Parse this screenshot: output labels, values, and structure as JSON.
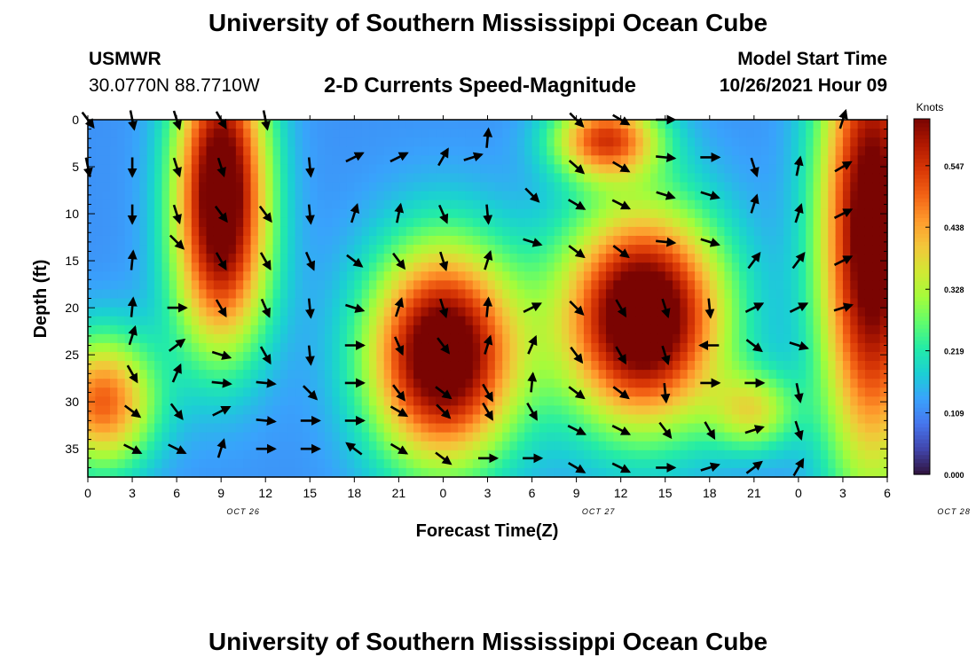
{
  "header": {
    "title": "University of Southern Mississippi Ocean Cube",
    "station": "USMWR",
    "coordinates": "30.0770N  88.7710W",
    "subtitle": "2-D Currents Speed-Magnitude",
    "model_start_label": "Model Start Time",
    "model_start_value": "10/26/2021 Hour 09"
  },
  "footer": {
    "title": "University of Southern Mississippi Ocean Cube"
  },
  "chart_data": {
    "type": "heatmap",
    "xlabel": "Forecast Time(Z)",
    "ylabel": "Depth (ft)",
    "x_tick_labels": [
      "0",
      "3",
      "6",
      "9",
      "12",
      "15",
      "18",
      "21",
      "0",
      "3",
      "6",
      "9",
      "12",
      "15",
      "18",
      "21",
      "0",
      "3",
      "6"
    ],
    "date_labels": [
      {
        "label": "OCT 26",
        "hours": 10.5
      },
      {
        "label": "OCT 27",
        "hours": 34.5
      },
      {
        "label": "OCT 28",
        "hours": 58.5
      }
    ],
    "xlim_hours": [
      0,
      54
    ],
    "ylim": [
      0,
      38
    ],
    "y_ticks": [
      0,
      5,
      10,
      15,
      20,
      25,
      30,
      35
    ],
    "y_inverted": true,
    "colorbar": {
      "unit": "Knots",
      "min": 0.0,
      "max": 0.63,
      "tick_labels": [
        "0.547",
        "0.438",
        "0.328",
        "0.219",
        "0.109",
        "0.000"
      ],
      "tick_values": [
        0.547,
        0.438,
        0.328,
        0.219,
        0.109,
        0.0
      ],
      "colormap": [
        "#30123b",
        "#4145ab",
        "#4675ed",
        "#39a2fc",
        "#1bcfd4",
        "#24eca6",
        "#61fc6c",
        "#a4fc3b",
        "#d1e834",
        "#f3c63a",
        "#fe9b2d",
        "#f36315",
        "#d93806",
        "#b11901",
        "#7a0402"
      ]
    },
    "speed_blobs": [
      {
        "t": 9,
        "d": 6,
        "st": 2.2,
        "sd": 10,
        "amp": 0.55
      },
      {
        "t": 9,
        "d": 18,
        "st": 2.5,
        "sd": 7,
        "amp": 0.15
      },
      {
        "t": 1,
        "d": 30,
        "st": 2.5,
        "sd": 5,
        "amp": 0.38
      },
      {
        "t": 24,
        "d": 25,
        "st": 3.5,
        "sd": 8,
        "amp": 0.6
      },
      {
        "t": 37.5,
        "d": 21,
        "st": 3.8,
        "sd": 8,
        "amp": 0.62
      },
      {
        "t": 35,
        "d": 2,
        "st": 2.5,
        "sd": 3,
        "amp": 0.4
      },
      {
        "t": 53,
        "d": 12,
        "st": 2.5,
        "sd": 18,
        "amp": 0.58
      },
      {
        "t": 45,
        "d": 31,
        "st": 2,
        "sd": 3,
        "amp": 0.22
      }
    ],
    "base_speed": 0.12,
    "vectors": [
      {
        "t": 0,
        "d": 0,
        "u": 0.6,
        "v": -0.8
      },
      {
        "t": 3,
        "d": 0,
        "u": 0.2,
        "v": -1
      },
      {
        "t": 6,
        "d": 0,
        "u": 0.3,
        "v": -0.95
      },
      {
        "t": 9,
        "d": 0,
        "u": 0.5,
        "v": -0.87
      },
      {
        "t": 12,
        "d": 0,
        "u": 0.2,
        "v": -1
      },
      {
        "t": 33,
        "d": 0,
        "u": 0.7,
        "v": -0.7
      },
      {
        "t": 36,
        "d": 0,
        "u": 0.85,
        "v": -0.5
      },
      {
        "t": 39,
        "d": 0,
        "u": 1,
        "v": 0
      },
      {
        "t": 51,
        "d": 0,
        "u": 0.3,
        "v": 0.95
      },
      {
        "t": 27,
        "d": 2,
        "u": 0.1,
        "v": 1
      },
      {
        "t": 0,
        "d": 5,
        "u": 0.2,
        "v": -0.98
      },
      {
        "t": 3,
        "d": 5,
        "u": 0,
        "v": -1
      },
      {
        "t": 6,
        "d": 5,
        "u": 0.3,
        "v": -0.95
      },
      {
        "t": 9,
        "d": 5,
        "u": 0.3,
        "v": -0.95
      },
      {
        "t": 15,
        "d": 5,
        "u": 0.1,
        "v": -1
      },
      {
        "t": 18,
        "d": 4,
        "u": 0.9,
        "v": 0.45
      },
      {
        "t": 21,
        "d": 4,
        "u": 0.9,
        "v": 0.45
      },
      {
        "t": 24,
        "d": 4,
        "u": 0.5,
        "v": 0.87
      },
      {
        "t": 26,
        "d": 4,
        "u": 0.95,
        "v": 0.3
      },
      {
        "t": 33,
        "d": 5,
        "u": 0.75,
        "v": -0.66
      },
      {
        "t": 36,
        "d": 5,
        "u": 0.85,
        "v": -0.5
      },
      {
        "t": 39,
        "d": 4,
        "u": 1,
        "v": -0.1
      },
      {
        "t": 42,
        "d": 4,
        "u": 1,
        "v": 0
      },
      {
        "t": 45,
        "d": 5,
        "u": 0.3,
        "v": -0.95
      },
      {
        "t": 48,
        "d": 5,
        "u": 0.2,
        "v": 0.98
      },
      {
        "t": 51,
        "d": 5,
        "u": 0.85,
        "v": 0.5
      },
      {
        "t": 3,
        "d": 10,
        "u": 0,
        "v": -1
      },
      {
        "t": 6,
        "d": 10,
        "u": 0.3,
        "v": -0.95
      },
      {
        "t": 9,
        "d": 10,
        "u": 0.6,
        "v": -0.8
      },
      {
        "t": 12,
        "d": 10,
        "u": 0.6,
        "v": -0.8
      },
      {
        "t": 15,
        "d": 10,
        "u": 0.1,
        "v": -1
      },
      {
        "t": 18,
        "d": 10,
        "u": 0.3,
        "v": 0.95
      },
      {
        "t": 21,
        "d": 10,
        "u": 0.2,
        "v": 0.98
      },
      {
        "t": 24,
        "d": 10,
        "u": 0.4,
        "v": -0.92
      },
      {
        "t": 27,
        "d": 10,
        "u": 0.1,
        "v": -1
      },
      {
        "t": 30,
        "d": 8,
        "u": 0.7,
        "v": -0.7
      },
      {
        "t": 33,
        "d": 9,
        "u": 0.85,
        "v": -0.5
      },
      {
        "t": 36,
        "d": 9,
        "u": 0.9,
        "v": -0.45
      },
      {
        "t": 39,
        "d": 8,
        "u": 0.95,
        "v": -0.3
      },
      {
        "t": 42,
        "d": 8,
        "u": 0.95,
        "v": -0.3
      },
      {
        "t": 45,
        "d": 9,
        "u": 0.3,
        "v": 0.95
      },
      {
        "t": 48,
        "d": 10,
        "u": 0.3,
        "v": 0.95
      },
      {
        "t": 51,
        "d": 10,
        "u": 0.9,
        "v": 0.45
      },
      {
        "t": 3,
        "d": 15,
        "u": 0.1,
        "v": 1
      },
      {
        "t": 6,
        "d": 13,
        "u": 0.7,
        "v": -0.7
      },
      {
        "t": 9,
        "d": 15,
        "u": 0.5,
        "v": -0.87
      },
      {
        "t": 12,
        "d": 15,
        "u": 0.5,
        "v": -0.87
      },
      {
        "t": 15,
        "d": 15,
        "u": 0.4,
        "v": -0.92
      },
      {
        "t": 18,
        "d": 15,
        "u": 0.8,
        "v": -0.6
      },
      {
        "t": 21,
        "d": 15,
        "u": 0.6,
        "v": -0.8
      },
      {
        "t": 24,
        "d": 15,
        "u": 0.3,
        "v": -0.95
      },
      {
        "t": 27,
        "d": 15,
        "u": 0.3,
        "v": 0.95
      },
      {
        "t": 30,
        "d": 13,
        "u": 0.95,
        "v": -0.3
      },
      {
        "t": 33,
        "d": 14,
        "u": 0.8,
        "v": -0.6
      },
      {
        "t": 36,
        "d": 14,
        "u": 0.8,
        "v": -0.6
      },
      {
        "t": 39,
        "d": 13,
        "u": 1,
        "v": -0.1
      },
      {
        "t": 42,
        "d": 13,
        "u": 0.95,
        "v": -0.3
      },
      {
        "t": 45,
        "d": 15,
        "u": 0.6,
        "v": 0.8
      },
      {
        "t": 48,
        "d": 15,
        "u": 0.6,
        "v": 0.8
      },
      {
        "t": 51,
        "d": 15,
        "u": 0.9,
        "v": 0.45
      },
      {
        "t": 3,
        "d": 20,
        "u": 0.1,
        "v": 1
      },
      {
        "t": 6,
        "d": 20,
        "u": 1,
        "v": 0
      },
      {
        "t": 9,
        "d": 20,
        "u": 0.5,
        "v": -0.87
      },
      {
        "t": 12,
        "d": 20,
        "u": 0.4,
        "v": -0.92
      },
      {
        "t": 15,
        "d": 20,
        "u": 0.1,
        "v": -1
      },
      {
        "t": 18,
        "d": 20,
        "u": 0.95,
        "v": -0.3
      },
      {
        "t": 21,
        "d": 20,
        "u": 0.3,
        "v": 0.95
      },
      {
        "t": 24,
        "d": 20,
        "u": 0.3,
        "v": -0.95
      },
      {
        "t": 27,
        "d": 20,
        "u": 0.1,
        "v": 1
      },
      {
        "t": 30,
        "d": 20,
        "u": 0.9,
        "v": 0.45
      },
      {
        "t": 33,
        "d": 20,
        "u": 0.7,
        "v": -0.7
      },
      {
        "t": 36,
        "d": 20,
        "u": 0.5,
        "v": -0.87
      },
      {
        "t": 39,
        "d": 20,
        "u": 0.3,
        "v": -0.95
      },
      {
        "t": 42,
        "d": 20,
        "u": 0.1,
        "v": -1
      },
      {
        "t": 45,
        "d": 20,
        "u": 0.9,
        "v": 0.45
      },
      {
        "t": 48,
        "d": 20,
        "u": 0.9,
        "v": 0.45
      },
      {
        "t": 51,
        "d": 20,
        "u": 0.95,
        "v": 0.3
      },
      {
        "t": 3,
        "d": 23,
        "u": 0.3,
        "v": 0.95
      },
      {
        "t": 6,
        "d": 24,
        "u": 0.8,
        "v": 0.6
      },
      {
        "t": 9,
        "d": 25,
        "u": 0.95,
        "v": -0.3
      },
      {
        "t": 12,
        "d": 25,
        "u": 0.5,
        "v": -0.87
      },
      {
        "t": 15,
        "d": 25,
        "u": 0.1,
        "v": -1
      },
      {
        "t": 18,
        "d": 24,
        "u": 1,
        "v": 0
      },
      {
        "t": 21,
        "d": 24,
        "u": 0.4,
        "v": -0.92
      },
      {
        "t": 24,
        "d": 24,
        "u": 0.6,
        "v": -0.8
      },
      {
        "t": 27,
        "d": 24,
        "u": 0.3,
        "v": 0.95
      },
      {
        "t": 30,
        "d": 24,
        "u": 0.4,
        "v": 0.92
      },
      {
        "t": 33,
        "d": 25,
        "u": 0.6,
        "v": -0.8
      },
      {
        "t": 36,
        "d": 25,
        "u": 0.5,
        "v": -0.87
      },
      {
        "t": 39,
        "d": 25,
        "u": 0.3,
        "v": -0.95
      },
      {
        "t": 42,
        "d": 24,
        "u": -1,
        "v": 0
      },
      {
        "t": 45,
        "d": 24,
        "u": 0.8,
        "v": -0.6
      },
      {
        "t": 48,
        "d": 24,
        "u": 0.95,
        "v": -0.3
      },
      {
        "t": 3,
        "d": 27,
        "u": 0.5,
        "v": -0.87
      },
      {
        "t": 6,
        "d": 27,
        "u": 0.4,
        "v": 0.92
      },
      {
        "t": 9,
        "d": 28,
        "u": 1,
        "v": -0.1
      },
      {
        "t": 12,
        "d": 28,
        "u": 1,
        "v": -0.1
      },
      {
        "t": 15,
        "d": 29,
        "u": 0.7,
        "v": -0.7
      },
      {
        "t": 18,
        "d": 28,
        "u": 1,
        "v": 0
      },
      {
        "t": 21,
        "d": 29,
        "u": 0.6,
        "v": -0.8
      },
      {
        "t": 24,
        "d": 29,
        "u": 0.8,
        "v": -0.6
      },
      {
        "t": 27,
        "d": 29,
        "u": 0.5,
        "v": -0.87
      },
      {
        "t": 30,
        "d": 28,
        "u": 0.1,
        "v": 1
      },
      {
        "t": 33,
        "d": 29,
        "u": 0.8,
        "v": -0.6
      },
      {
        "t": 36,
        "d": 29,
        "u": 0.8,
        "v": -0.6
      },
      {
        "t": 39,
        "d": 29,
        "u": 0.1,
        "v": -1
      },
      {
        "t": 42,
        "d": 28,
        "u": 1,
        "v": 0
      },
      {
        "t": 45,
        "d": 28,
        "u": 1,
        "v": 0
      },
      {
        "t": 48,
        "d": 29,
        "u": 0.2,
        "v": -0.98
      },
      {
        "t": 3,
        "d": 31,
        "u": 0.8,
        "v": -0.6
      },
      {
        "t": 6,
        "d": 31,
        "u": 0.6,
        "v": -0.8
      },
      {
        "t": 9,
        "d": 31,
        "u": 0.9,
        "v": 0.45
      },
      {
        "t": 12,
        "d": 32,
        "u": 1,
        "v": -0.1
      },
      {
        "t": 15,
        "d": 32,
        "u": 1,
        "v": 0
      },
      {
        "t": 18,
        "d": 32,
        "u": 1,
        "v": 0
      },
      {
        "t": 21,
        "d": 31,
        "u": 0.85,
        "v": -0.5
      },
      {
        "t": 24,
        "d": 31,
        "u": 0.7,
        "v": -0.7
      },
      {
        "t": 27,
        "d": 31,
        "u": 0.5,
        "v": -0.87
      },
      {
        "t": 30,
        "d": 31,
        "u": 0.5,
        "v": -0.87
      },
      {
        "t": 33,
        "d": 33,
        "u": 0.9,
        "v": -0.45
      },
      {
        "t": 36,
        "d": 33,
        "u": 0.9,
        "v": -0.45
      },
      {
        "t": 39,
        "d": 33,
        "u": 0.6,
        "v": -0.8
      },
      {
        "t": 42,
        "d": 33,
        "u": 0.5,
        "v": -0.87
      },
      {
        "t": 45,
        "d": 33,
        "u": 0.95,
        "v": 0.3
      },
      {
        "t": 48,
        "d": 33,
        "u": 0.3,
        "v": -0.95
      },
      {
        "t": 3,
        "d": 35,
        "u": 0.9,
        "v": -0.45
      },
      {
        "t": 6,
        "d": 35,
        "u": 0.9,
        "v": -0.45
      },
      {
        "t": 9,
        "d": 35,
        "u": 0.3,
        "v": 0.95
      },
      {
        "t": 12,
        "d": 35,
        "u": 1,
        "v": 0
      },
      {
        "t": 15,
        "d": 35,
        "u": 1,
        "v": 0
      },
      {
        "t": 18,
        "d": 35,
        "u": -0.8,
        "v": 0.6
      },
      {
        "t": 21,
        "d": 35,
        "u": 0.85,
        "v": -0.5
      },
      {
        "t": 24,
        "d": 36,
        "u": 0.8,
        "v": -0.6
      },
      {
        "t": 27,
        "d": 36,
        "u": 1,
        "v": 0
      },
      {
        "t": 30,
        "d": 36,
        "u": 1,
        "v": 0
      },
      {
        "t": 33,
        "d": 37,
        "u": 0.85,
        "v": -0.5
      },
      {
        "t": 36,
        "d": 37,
        "u": 0.9,
        "v": -0.45
      },
      {
        "t": 39,
        "d": 37,
        "u": 1,
        "v": 0
      },
      {
        "t": 42,
        "d": 37,
        "u": 0.95,
        "v": 0.3
      },
      {
        "t": 45,
        "d": 37,
        "u": 0.8,
        "v": 0.6
      },
      {
        "t": 48,
        "d": 37,
        "u": 0.5,
        "v": 0.87
      }
    ]
  }
}
